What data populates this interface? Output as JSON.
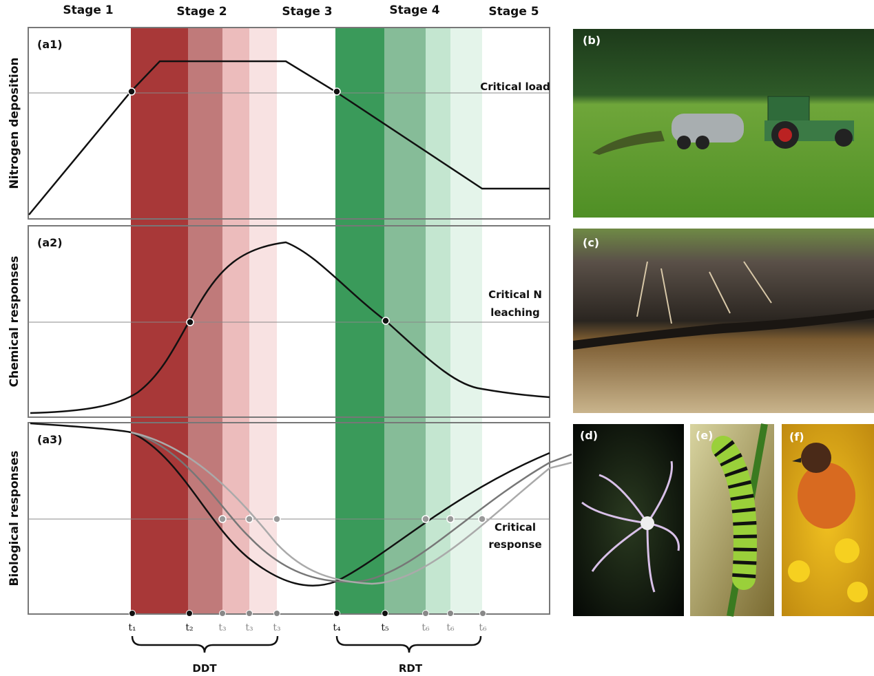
{
  "stages": [
    "Stage 1",
    "Stage 2",
    "Stage 3",
    "Stage 4",
    "Stage 5"
  ],
  "panels": [
    {
      "label": "(a1)",
      "y_axis_label": "Nitrogen deposition",
      "threshold_label": [
        "Critical load"
      ]
    },
    {
      "label": "(a2)",
      "y_axis_label": "Chemical responses",
      "threshold_label": [
        "Critical N",
        "leaching"
      ]
    },
    {
      "label": "(a3)",
      "y_axis_label": "Biological responses",
      "threshold_label": [
        "Critical",
        "response"
      ]
    }
  ],
  "time_points": [
    "t₁",
    "t₂",
    "t₃",
    "t₃",
    "t₃",
    "t₄",
    "t₅",
    "t₆",
    "t₆",
    "t₆"
  ],
  "brackets": [
    "DDT",
    "RDT"
  ],
  "photos": [
    "(b)",
    "(c)",
    "(d)",
    "(e)",
    "(f)"
  ]
}
